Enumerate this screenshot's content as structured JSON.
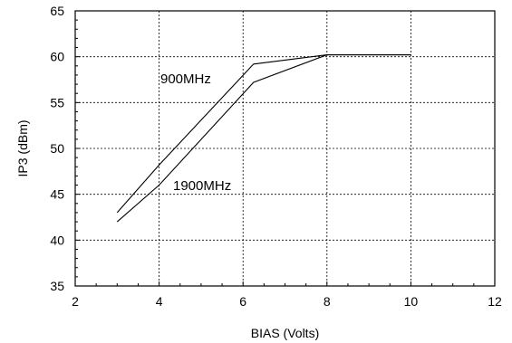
{
  "chart_data": {
    "type": "line",
    "xlabel": "BIAS (Volts)",
    "ylabel": "IP3 (dBm)",
    "xlim": [
      2,
      12
    ],
    "ylim": [
      35,
      65
    ],
    "xticks": [
      2,
      4,
      6,
      8,
      10,
      12
    ],
    "yticks": [
      35,
      40,
      45,
      50,
      55,
      60,
      65
    ],
    "grid": true,
    "series": [
      {
        "name": "900MHz",
        "x": [
          3,
          4,
          6.25,
          8,
          10
        ],
        "y": [
          43,
          48.2,
          59.2,
          60.2,
          60.2
        ]
      },
      {
        "name": "1900MHz",
        "x": [
          3,
          4,
          6.25,
          8,
          10
        ],
        "y": [
          42,
          46,
          57.2,
          60.2,
          60.2
        ]
      }
    ]
  }
}
